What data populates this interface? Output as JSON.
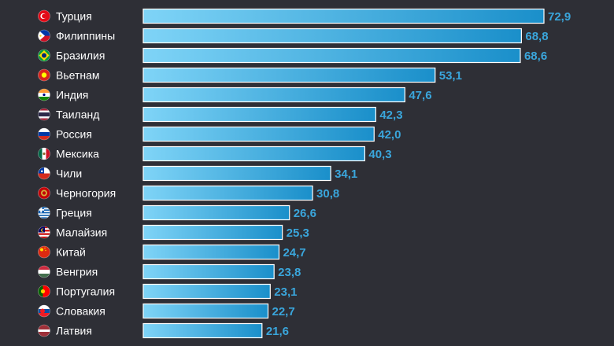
{
  "colors": {
    "background": "#2e2f36",
    "bar_start": "#7fd4f7",
    "bar_end": "#1a8fca",
    "bar_border": "#ffffff",
    "value_text": "#3aa6dc",
    "label_text": "#ffffff"
  },
  "chart_data": {
    "type": "bar",
    "orientation": "horizontal",
    "title": "",
    "xlabel": "",
    "ylabel": "",
    "xlim": [
      0,
      72.9
    ],
    "grid": false,
    "legend": "none",
    "categories": [
      "Турция",
      "Филиппины",
      "Бразилия",
      "Вьетнам",
      "Индия",
      "Таиланд",
      "Россия",
      "Мексика",
      "Чили",
      "Черногория",
      "Греция",
      "Малайзия",
      "Китай",
      "Венгрия",
      "Португалия",
      "Словакия",
      "Латвия"
    ],
    "values": [
      72.9,
      68.8,
      68.6,
      53.1,
      47.6,
      42.3,
      42.0,
      40.3,
      34.1,
      30.8,
      26.6,
      25.3,
      24.7,
      23.8,
      23.1,
      22.7,
      21.6
    ],
    "value_labels": [
      "72,9",
      "68,8",
      "68,6",
      "53,1",
      "47,6",
      "42,3",
      "42,0",
      "40,3",
      "34,1",
      "30,8",
      "26,6",
      "25,3",
      "24,7",
      "23,8",
      "23,1",
      "22,7",
      "21,6"
    ],
    "flag_icons": [
      "turkey-flag-icon",
      "philippines-flag-icon",
      "brazil-flag-icon",
      "vietnam-flag-icon",
      "india-flag-icon",
      "thailand-flag-icon",
      "russia-flag-icon",
      "mexico-flag-icon",
      "chile-flag-icon",
      "montenegro-flag-icon",
      "greece-flag-icon",
      "malaysia-flag-icon",
      "china-flag-icon",
      "hungary-flag-icon",
      "portugal-flag-icon",
      "slovakia-flag-icon",
      "latvia-flag-icon"
    ]
  }
}
